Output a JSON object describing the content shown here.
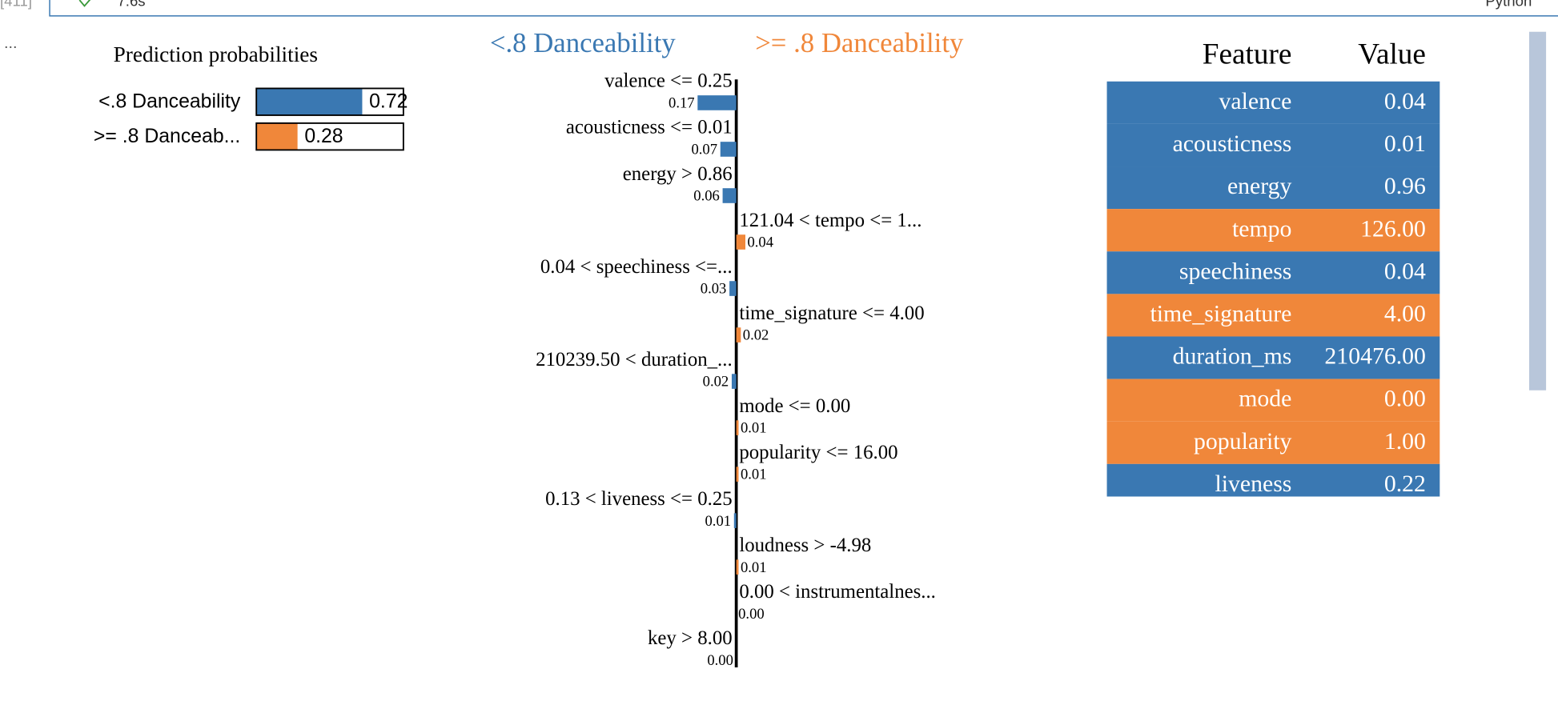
{
  "cell": {
    "number": "[411]",
    "duration": "7.6s",
    "kernel": "Python",
    "menu": "..."
  },
  "prediction": {
    "title": "Prediction probabilities",
    "classes": [
      {
        "name": "<.8 Danceability",
        "short_label": "<.8 Danceability",
        "value": 0.72,
        "color": "#3a78b2"
      },
      {
        "name": ">= .8 Danceability",
        "short_label": ">= .8 Danceab...",
        "value": 0.28,
        "color": "#f0873a"
      }
    ]
  },
  "explanation": {
    "features": [
      {
        "label": "valence <= 0.25",
        "weight": 0.17,
        "class": 0
      },
      {
        "label": "acousticness <= 0.01",
        "weight": 0.07,
        "class": 0
      },
      {
        "label": "energy > 0.86",
        "weight": 0.06,
        "class": 0
      },
      {
        "label": "121.04 < tempo <= 1...",
        "weight": 0.04,
        "class": 1
      },
      {
        "label": "0.04 < speechiness <=...",
        "weight": 0.03,
        "class": 0
      },
      {
        "label": "time_signature <= 4.00",
        "weight": 0.02,
        "class": 1
      },
      {
        "label": "210239.50 < duration_...",
        "weight": 0.02,
        "class": 0
      },
      {
        "label": "mode <= 0.00",
        "weight": 0.01,
        "class": 1
      },
      {
        "label": "popularity <= 16.00",
        "weight": 0.01,
        "class": 1
      },
      {
        "label": "0.13 < liveness <= 0.25",
        "weight": 0.01,
        "class": 0
      },
      {
        "label": "loudness > -4.98",
        "weight": 0.01,
        "class": 1
      },
      {
        "label": "0.00 < instrumentalnes...",
        "weight": 0,
        "weight_label": "0.00",
        "class": 1
      },
      {
        "label": "key > 8.00",
        "weight": 0,
        "weight_label": "0.00",
        "class": 0
      }
    ]
  },
  "table": {
    "headers": [
      "Feature",
      "Value"
    ],
    "rows": [
      {
        "feature": "valence",
        "value": "0.04",
        "color": "#3a78b2"
      },
      {
        "feature": "acousticness",
        "value": "0.01",
        "color": "#3a78b2"
      },
      {
        "feature": "energy",
        "value": "0.96",
        "color": "#3a78b2"
      },
      {
        "feature": "tempo",
        "value": "126.00",
        "color": "#f0873a"
      },
      {
        "feature": "speechiness",
        "value": "0.04",
        "color": "#3a78b2"
      },
      {
        "feature": "time_signature",
        "value": "4.00",
        "color": "#f0873a"
      },
      {
        "feature": "duration_ms",
        "value": "210476.00",
        "color": "#3a78b2"
      },
      {
        "feature": "mode",
        "value": "0.00",
        "color": "#f0873a"
      },
      {
        "feature": "popularity",
        "value": "1.00",
        "color": "#f0873a"
      },
      {
        "feature": "liveness",
        "value": "0.22",
        "color": "#3a78b2"
      }
    ]
  }
}
